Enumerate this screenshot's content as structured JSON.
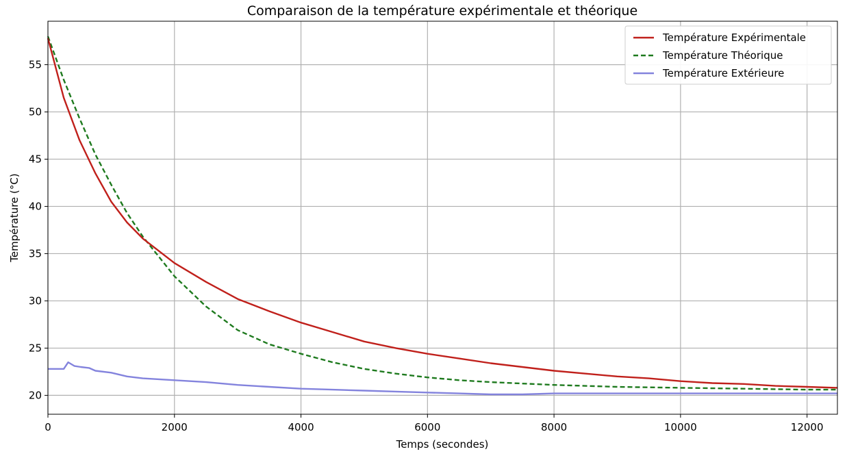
{
  "chart_data": {
    "type": "line",
    "title": "Comparaison de la température expérimentale et théorique",
    "xlabel": "Temps (secondes)",
    "ylabel": "Température (°C)",
    "xlim": [
      0,
      12480
    ],
    "ylim": [
      18,
      59.6
    ],
    "xticks": [
      0,
      2000,
      4000,
      6000,
      8000,
      10000,
      12000
    ],
    "yticks": [
      20,
      25,
      30,
      35,
      40,
      45,
      50,
      55
    ],
    "grid": true,
    "legend_position": "top-right",
    "series": [
      {
        "name": "Température Expérimentale",
        "color": "#c0201b",
        "style": "solid",
        "x": [
          0,
          250,
          500,
          750,
          1000,
          1250,
          1500,
          2000,
          2500,
          3000,
          3500,
          4000,
          4500,
          5000,
          5500,
          6000,
          6500,
          7000,
          7500,
          8000,
          8500,
          9000,
          9500,
          10000,
          10500,
          11000,
          11500,
          12000,
          12480
        ],
        "y": [
          57.8,
          51.5,
          47.0,
          43.5,
          40.5,
          38.3,
          36.6,
          34.0,
          32.0,
          30.2,
          28.9,
          27.7,
          26.7,
          25.7,
          25.0,
          24.4,
          23.9,
          23.4,
          23.0,
          22.6,
          22.3,
          22.0,
          21.8,
          21.5,
          21.3,
          21.2,
          21.0,
          20.9,
          20.8
        ]
      },
      {
        "name": "Température Théorique",
        "color": "#1e7a1e",
        "style": "dashed",
        "x": [
          0,
          250,
          500,
          750,
          1000,
          1250,
          1500,
          2000,
          2500,
          3000,
          3500,
          4000,
          4500,
          5000,
          5500,
          6000,
          6500,
          7000,
          8000,
          9000,
          10000,
          11000,
          12000,
          12480
        ],
        "y": [
          58.0,
          53.4,
          49.3,
          45.5,
          42.3,
          39.3,
          36.8,
          32.6,
          29.4,
          26.9,
          25.4,
          24.4,
          23.5,
          22.8,
          22.3,
          21.9,
          21.6,
          21.4,
          21.1,
          20.9,
          20.8,
          20.7,
          20.6,
          20.6
        ]
      },
      {
        "name": "Température Extérieure",
        "color": "#8383dd",
        "style": "solid",
        "x": [
          0,
          250,
          320,
          420,
          520,
          650,
          750,
          1000,
          1250,
          1500,
          2000,
          2500,
          3000,
          3500,
          4000,
          4500,
          5000,
          5500,
          6000,
          6500,
          7000,
          7500,
          8000,
          9000,
          10000,
          11000,
          12000,
          12480
        ],
        "y": [
          22.8,
          22.8,
          23.5,
          23.1,
          23.0,
          22.9,
          22.6,
          22.4,
          22.0,
          21.8,
          21.6,
          21.4,
          21.1,
          20.9,
          20.7,
          20.6,
          20.5,
          20.4,
          20.3,
          20.2,
          20.1,
          20.1,
          20.2,
          20.2,
          20.2,
          20.2,
          20.2,
          20.2
        ]
      }
    ]
  }
}
